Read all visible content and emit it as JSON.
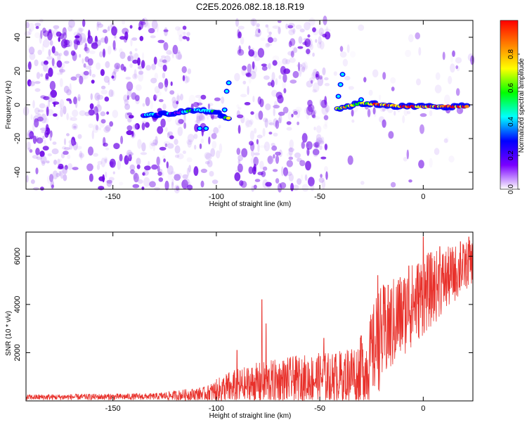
{
  "title": "C2E5.2026.082.18.18.R19",
  "chart_data": [
    {
      "type": "heatmap",
      "xlabel": "Height of straight line (km)",
      "ylabel": "Frequency (Hz)",
      "xlim": [
        -192,
        24
      ],
      "ylim": [
        -50,
        50
      ],
      "xticks": [
        -150,
        -100,
        -50,
        0
      ],
      "yticks": [
        -40,
        -20,
        0,
        20,
        40
      ],
      "colorbar": {
        "label": "Normalized spectral amplitude",
        "range": [
          0,
          1
        ],
        "ticks": [
          0.0,
          0.2,
          0.4,
          0.6,
          0.8
        ],
        "colors": [
          "#ffffff",
          "#7a00ff",
          "#0000ff",
          "#00ffff",
          "#00ff00",
          "#ffff00",
          "#ff8000",
          "#ff0000"
        ]
      },
      "ridge": {
        "description": "dominant frequency trace",
        "points": [
          [
            -135,
            -6
          ],
          [
            -120,
            -5
          ],
          [
            -110,
            -3
          ],
          [
            -100,
            -4
          ],
          [
            -95,
            -8
          ],
          [
            -40,
            -2
          ],
          [
            -30,
            1
          ],
          [
            -20,
            0
          ],
          [
            -10,
            -1
          ],
          [
            0,
            -1
          ],
          [
            10,
            -1
          ],
          [
            22,
            -1
          ]
        ]
      }
    },
    {
      "type": "line",
      "xlabel": "Height of straight line (km)",
      "ylabel": "SNR (10 * v/v)",
      "xlim": [
        -192,
        24
      ],
      "ylim": [
        0,
        7000
      ],
      "xticks": [
        -150,
        -100,
        -50,
        0
      ],
      "yticks": [
        2000,
        4000,
        6000
      ],
      "series": [
        {
          "color": "#e8302a",
          "envelope": [
            {
              "x": -192,
              "base": 150,
              "amp": 120
            },
            {
              "x": -130,
              "base": 180,
              "amp": 140
            },
            {
              "x": -105,
              "base": 300,
              "amp": 300
            },
            {
              "x": -95,
              "base": 500,
              "amp": 700
            },
            {
              "x": -80,
              "base": 700,
              "amp": 900
            },
            {
              "x": -60,
              "base": 900,
              "amp": 1000
            },
            {
              "x": -40,
              "base": 1000,
              "amp": 1100
            },
            {
              "x": -28,
              "base": 1300,
              "amp": 1500
            },
            {
              "x": -22,
              "base": 2500,
              "amp": 2200
            },
            {
              "x": -10,
              "base": 3600,
              "amp": 1800
            },
            {
              "x": 0,
              "base": 4400,
              "amp": 1700
            },
            {
              "x": 24,
              "base": 5800,
              "amp": 900
            }
          ],
          "spikes": [
            [
              -90,
              2100
            ],
            [
              -78,
              4200
            ],
            [
              -76,
              3200
            ],
            [
              -48,
              2600
            ],
            [
              -30,
              2700
            ],
            [
              -22,
              5200
            ],
            [
              -17,
              4800
            ],
            [
              -12,
              5000
            ],
            [
              -7,
              5600
            ],
            [
              0,
              6800
            ],
            [
              8,
              6400
            ],
            [
              18,
              6600
            ],
            [
              22,
              6800
            ]
          ]
        }
      ]
    }
  ]
}
